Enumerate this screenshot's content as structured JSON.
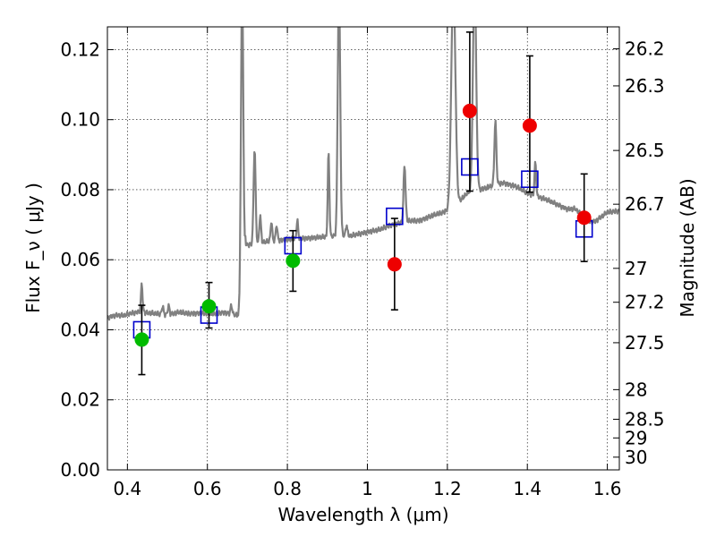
{
  "chart_data": {
    "type": "scatter",
    "xlabel": "Wavelength  λ (μm)",
    "ylabel": "Flux  F_ν  ( μJy )",
    "y2label": "Magnitude (AB)",
    "xlim": [
      0.35,
      1.63
    ],
    "ylim": [
      0.0,
      0.1265
    ],
    "grid": true,
    "x_ticks": [
      {
        "value": 0.4,
        "label": "0.4"
      },
      {
        "value": 0.6,
        "label": "0.6"
      },
      {
        "value": 0.8,
        "label": "0.8"
      },
      {
        "value": 1.0,
        "label": "1"
      },
      {
        "value": 1.2,
        "label": "1.2"
      },
      {
        "value": 1.4,
        "label": "1.4"
      },
      {
        "value": 1.6,
        "label": "1.6"
      }
    ],
    "y_ticks": [
      {
        "value": 0.0,
        "label": "0.00"
      },
      {
        "value": 0.02,
        "label": "0.02"
      },
      {
        "value": 0.04,
        "label": "0.04"
      },
      {
        "value": 0.06,
        "label": "0.06"
      },
      {
        "value": 0.08,
        "label": "0.08"
      },
      {
        "value": 0.1,
        "label": "0.10"
      },
      {
        "value": 0.12,
        "label": "0.12"
      }
    ],
    "magnitude_ticks": [
      {
        "mag": 26.2,
        "label": "26.2"
      },
      {
        "mag": 26.3,
        "label": "26.3"
      },
      {
        "mag": 26.5,
        "label": "26.5"
      },
      {
        "mag": 26.7,
        "label": "26.7"
      },
      {
        "mag": 27.0,
        "label": "27"
      },
      {
        "mag": 27.2,
        "label": "27.2"
      },
      {
        "mag": 27.5,
        "label": "27.5"
      },
      {
        "mag": 28.0,
        "label": "28"
      },
      {
        "mag": 28.5,
        "label": "28.5"
      },
      {
        "mag": 29.0,
        "label": "29"
      },
      {
        "mag": 30.0,
        "label": "30"
      }
    ],
    "spectrum": {
      "color": "#808080",
      "baseline": [
        [
          0.35,
          0.0435
        ],
        [
          0.37,
          0.0442
        ],
        [
          0.39,
          0.044
        ],
        [
          0.41,
          0.0447
        ],
        [
          0.43,
          0.0452
        ],
        [
          0.45,
          0.0448
        ],
        [
          0.48,
          0.0445
        ],
        [
          0.5,
          0.0443
        ],
        [
          0.53,
          0.045
        ],
        [
          0.55,
          0.0446
        ],
        [
          0.58,
          0.0448
        ],
        [
          0.61,
          0.0445
        ],
        [
          0.64,
          0.045
        ],
        [
          0.66,
          0.0445
        ],
        [
          0.68,
          0.044
        ],
        [
          0.69,
          0.042
        ],
        [
          0.695,
          0.064
        ],
        [
          0.71,
          0.0645
        ],
        [
          0.74,
          0.065
        ],
        [
          0.77,
          0.0655
        ],
        [
          0.8,
          0.0658
        ],
        [
          0.83,
          0.066
        ],
        [
          0.86,
          0.0663
        ],
        [
          0.9,
          0.0665
        ],
        [
          0.93,
          0.067
        ],
        [
          0.96,
          0.0668
        ],
        [
          1.0,
          0.068
        ],
        [
          1.03,
          0.0685
        ],
        [
          1.06,
          0.07
        ],
        [
          1.1,
          0.071
        ],
        [
          1.13,
          0.0712
        ],
        [
          1.16,
          0.0725
        ],
        [
          1.19,
          0.0735
        ],
        [
          1.22,
          0.0755
        ],
        [
          1.25,
          0.079
        ],
        [
          1.28,
          0.08
        ],
        [
          1.31,
          0.081
        ],
        [
          1.34,
          0.082
        ],
        [
          1.37,
          0.081
        ],
        [
          1.4,
          0.079
        ],
        [
          1.44,
          0.0775
        ],
        [
          1.47,
          0.076
        ],
        [
          1.5,
          0.0745
        ],
        [
          1.52,
          0.0745
        ],
        [
          1.55,
          0.071
        ],
        [
          1.57,
          0.071
        ],
        [
          1.6,
          0.0735
        ],
        [
          1.63,
          0.074
        ]
      ],
      "emission_lines": [
        {
          "x": 0.436,
          "peak": 0.053,
          "width": 0.004
        },
        {
          "x": 0.488,
          "peak": 0.0468,
          "width": 0.004
        },
        {
          "x": 0.503,
          "peak": 0.047,
          "width": 0.004
        },
        {
          "x": 0.66,
          "peak": 0.047,
          "width": 0.004
        },
        {
          "x": 0.687,
          "peak": 0.14,
          "width": 0.006
        },
        {
          "x": 0.718,
          "peak": 0.092,
          "width": 0.005
        },
        {
          "x": 0.732,
          "peak": 0.073,
          "width": 0.004
        },
        {
          "x": 0.76,
          "peak": 0.071,
          "width": 0.004
        },
        {
          "x": 0.773,
          "peak": 0.07,
          "width": 0.004
        },
        {
          "x": 0.825,
          "peak": 0.071,
          "width": 0.004
        },
        {
          "x": 0.903,
          "peak": 0.091,
          "width": 0.004
        },
        {
          "x": 0.929,
          "peak": 0.14,
          "width": 0.006
        },
        {
          "x": 0.948,
          "peak": 0.07,
          "width": 0.004
        },
        {
          "x": 1.093,
          "peak": 0.087,
          "width": 0.005
        },
        {
          "x": 1.215,
          "peak": 0.14,
          "width": 0.01
        },
        {
          "x": 1.268,
          "peak": 0.14,
          "width": 0.008
        },
        {
          "x": 1.32,
          "peak": 0.0995,
          "width": 0.005
        },
        {
          "x": 1.42,
          "peak": 0.088,
          "width": 0.004
        }
      ]
    },
    "model_points": {
      "color": "#0000cc",
      "marker": "open-square",
      "points": [
        {
          "x": 0.436,
          "y": 0.04
        },
        {
          "x": 0.604,
          "y": 0.0442
        },
        {
          "x": 0.814,
          "y": 0.064
        },
        {
          "x": 1.068,
          "y": 0.0724
        },
        {
          "x": 1.256,
          "y": 0.0865
        },
        {
          "x": 1.406,
          "y": 0.083
        },
        {
          "x": 1.542,
          "y": 0.0688
        }
      ]
    },
    "observed_optical": {
      "color": "#00bb00",
      "marker": "filled-circle",
      "points": [
        {
          "x": 0.436,
          "y": 0.0372,
          "err_lo": 0.0272,
          "err_hi": 0.047
        },
        {
          "x": 0.604,
          "y": 0.0467,
          "err_lo": 0.0405,
          "err_hi": 0.0535
        },
        {
          "x": 0.814,
          "y": 0.0597,
          "err_lo": 0.051,
          "err_hi": 0.0683
        }
      ]
    },
    "observed_infrared": {
      "color": "#ee0000",
      "marker": "filled-circle",
      "points": [
        {
          "x": 1.068,
          "y": 0.0587,
          "err_lo": 0.0457,
          "err_hi": 0.0718
        },
        {
          "x": 1.256,
          "y": 0.1025,
          "err_lo": 0.0796,
          "err_hi": 0.125
        },
        {
          "x": 1.406,
          "y": 0.0983,
          "err_lo": 0.0793,
          "err_hi": 0.1182
        },
        {
          "x": 1.542,
          "y": 0.072,
          "err_lo": 0.0595,
          "err_hi": 0.0845
        }
      ]
    }
  }
}
